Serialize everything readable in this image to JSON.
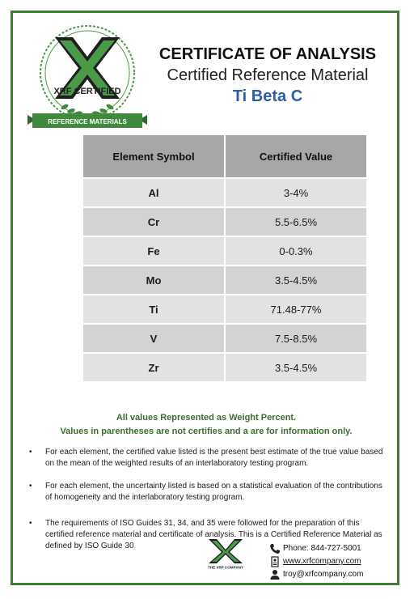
{
  "logo": {
    "badge_text": "XRF CERTIFIED",
    "ribbon_text": "REFERENCE MATERIALS",
    "colors": {
      "green": "#4a9a4a",
      "dark": "#1e1e1e",
      "ribbon": "#3f8a3c"
    }
  },
  "header": {
    "title": "CERTIFICATE OF ANALYSIS",
    "subtitle": "Certified Reference Material",
    "product": "Ti Beta C"
  },
  "table": {
    "columns": [
      "Element Symbol",
      "Certified Value"
    ],
    "rows": [
      {
        "symbol": "Al",
        "value": "3-4%"
      },
      {
        "symbol": "Cr",
        "value": "5.5-6.5%"
      },
      {
        "symbol": "Fe",
        "value": "0-0.3%"
      },
      {
        "symbol": "Mo",
        "value": "3.5-4.5%"
      },
      {
        "symbol": "Ti",
        "value": "71.48-77%"
      },
      {
        "symbol": "V",
        "value": "7.5-8.5%"
      },
      {
        "symbol": "Zr",
        "value": "3.5-4.5%"
      }
    ]
  },
  "notes": {
    "line1": "All values Represented as Weight Percent.",
    "line2": "Values in parentheses are not certifies and a are for information only."
  },
  "bullets": [
    "For each element, the certified value listed is the present best estimate of the true value based on the mean of the weighted results of an interlaboratory testing program.",
    "For each element, the uncertainty listed is based on a statistical evaluation of the contributions of homogeneity and the interlaboratory testing program.",
    "The requirements of ISO Guides 31, 34, and 35 were followed for the preparation of this certified reference material and certificate of analysis. This is a Certified Reference Material as defined by ISO Guide 30"
  ],
  "bullet_symbol": "•",
  "footer": {
    "company_logo_text": "THE XRF COMPANY",
    "phone": "Phone: 844-727-5001",
    "website": "www.xrfcompany.com",
    "email": "troy@xrfcompany.com",
    "icons": [
      "phone-icon",
      "id-badge-icon",
      "person-icon"
    ]
  }
}
